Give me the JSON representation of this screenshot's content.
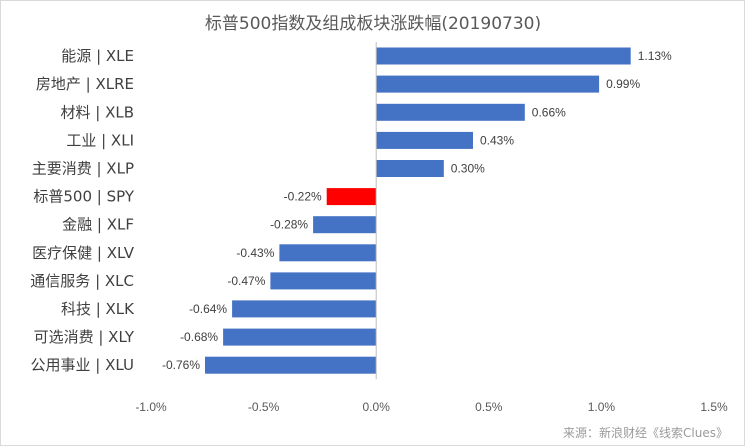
{
  "chart_data": {
    "type": "bar",
    "orientation": "horizontal",
    "title": "标普500指数及组成板块涨跌幅(20190730)",
    "categories": [
      "能源 | XLE",
      "房地产 | XLRE",
      "材料 | XLB",
      "工业 | XLI",
      "主要消费 | XLP",
      "标普500 | SPY",
      "金融 | XLF",
      "医疗保健 | XLV",
      "通信服务 | XLC",
      "科技 | XLK",
      "可选消费 | XLY",
      "公用事业 | XLU"
    ],
    "values": [
      1.13,
      0.99,
      0.66,
      0.43,
      0.3,
      -0.22,
      -0.28,
      -0.43,
      -0.47,
      -0.64,
      -0.68,
      -0.76
    ],
    "data_labels": [
      "1.13%",
      "0.99%",
      "0.66%",
      "0.43%",
      "0.30%",
      "-0.22%",
      "-0.28%",
      "-0.43%",
      "-0.47%",
      "-0.64%",
      "-0.68%",
      "-0.76%"
    ],
    "xlim": [
      -1.0,
      1.5
    ],
    "x_ticks": [
      -1.0,
      -0.5,
      0.0,
      0.5,
      1.0,
      1.5
    ],
    "x_tick_labels": [
      "-1.0%",
      "-0.5%",
      "0.0%",
      "0.5%",
      "1.0%",
      "1.5%"
    ],
    "highlight_category": "标普500 | SPY",
    "colors": {
      "bar": "#4472c4",
      "highlight": "#ff0000",
      "axis": "#bfbfbf"
    },
    "grid": false,
    "legend": "none",
    "xlabel": "",
    "ylabel": ""
  },
  "source_note": "来源：新浪财经《线索Clues》"
}
